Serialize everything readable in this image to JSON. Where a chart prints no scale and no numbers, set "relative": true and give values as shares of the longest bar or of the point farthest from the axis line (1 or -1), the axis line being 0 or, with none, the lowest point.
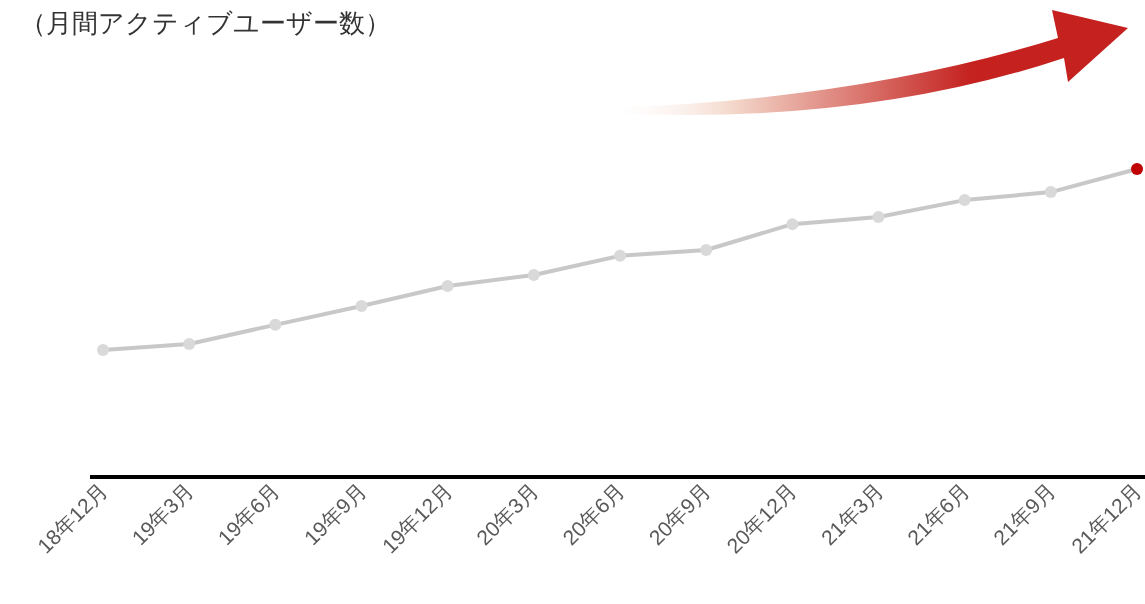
{
  "chart_data": {
    "type": "line",
    "title": "（月間アクティブユーザー数）",
    "relative": true,
    "categories": [
      "18年12月",
      "19年3月",
      "19年6月",
      "19年9月",
      "19年12月",
      "20年3月",
      "20年6月",
      "20年9月",
      "20年12月",
      "21年3月",
      "21年6月",
      "21年9月",
      "21年12月"
    ],
    "series": [
      {
        "color": "#c8c8c8",
        "colors": [
          "#d9d9d9",
          "#d9d9d9",
          "#d9d9d9",
          "#d9d9d9",
          "#d9d9d9",
          "#d9d9d9",
          "#d9d9d9",
          "#d9d9d9",
          "#d9d9d9",
          "#d9d9d9",
          "#d9d9d9",
          "#d9d9d9",
          "#c00000"
        ],
        "values": [
          0.412,
          0.432,
          0.494,
          0.555,
          0.62,
          0.656,
          0.718,
          0.737,
          0.821,
          0.844,
          0.899,
          0.925,
          1
        ]
      }
    ],
    "marker": "circle",
    "line_style": "solid"
  }
}
